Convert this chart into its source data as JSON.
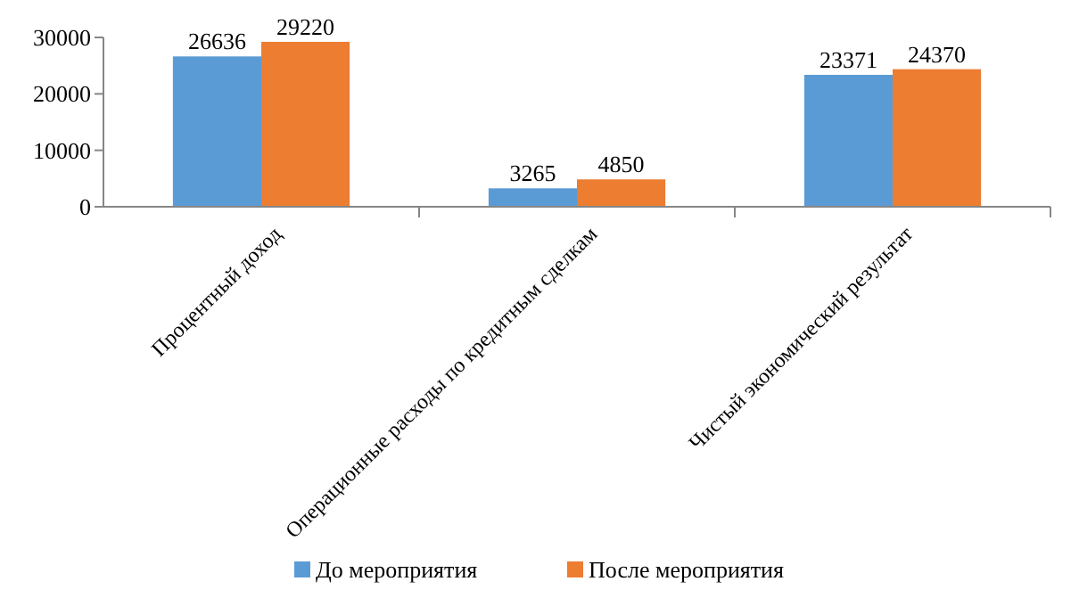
{
  "chart_data": {
    "type": "bar",
    "categories": [
      "Процентный доход",
      "Операционные расходы по кредитным сделкам",
      "Чистый экономический результат"
    ],
    "series": [
      {
        "name": "До мероприятия",
        "color": "#5b9bd5",
        "values": [
          26636,
          3265,
          23371
        ]
      },
      {
        "name": "После мероприятия",
        "color": "#ed7d31",
        "values": [
          29220,
          4850,
          24370
        ]
      }
    ],
    "ylim": [
      0,
      30000
    ],
    "yticks": [
      0,
      10000,
      20000,
      30000
    ],
    "data_labels": true,
    "legend": "bottom",
    "grid": false
  }
}
